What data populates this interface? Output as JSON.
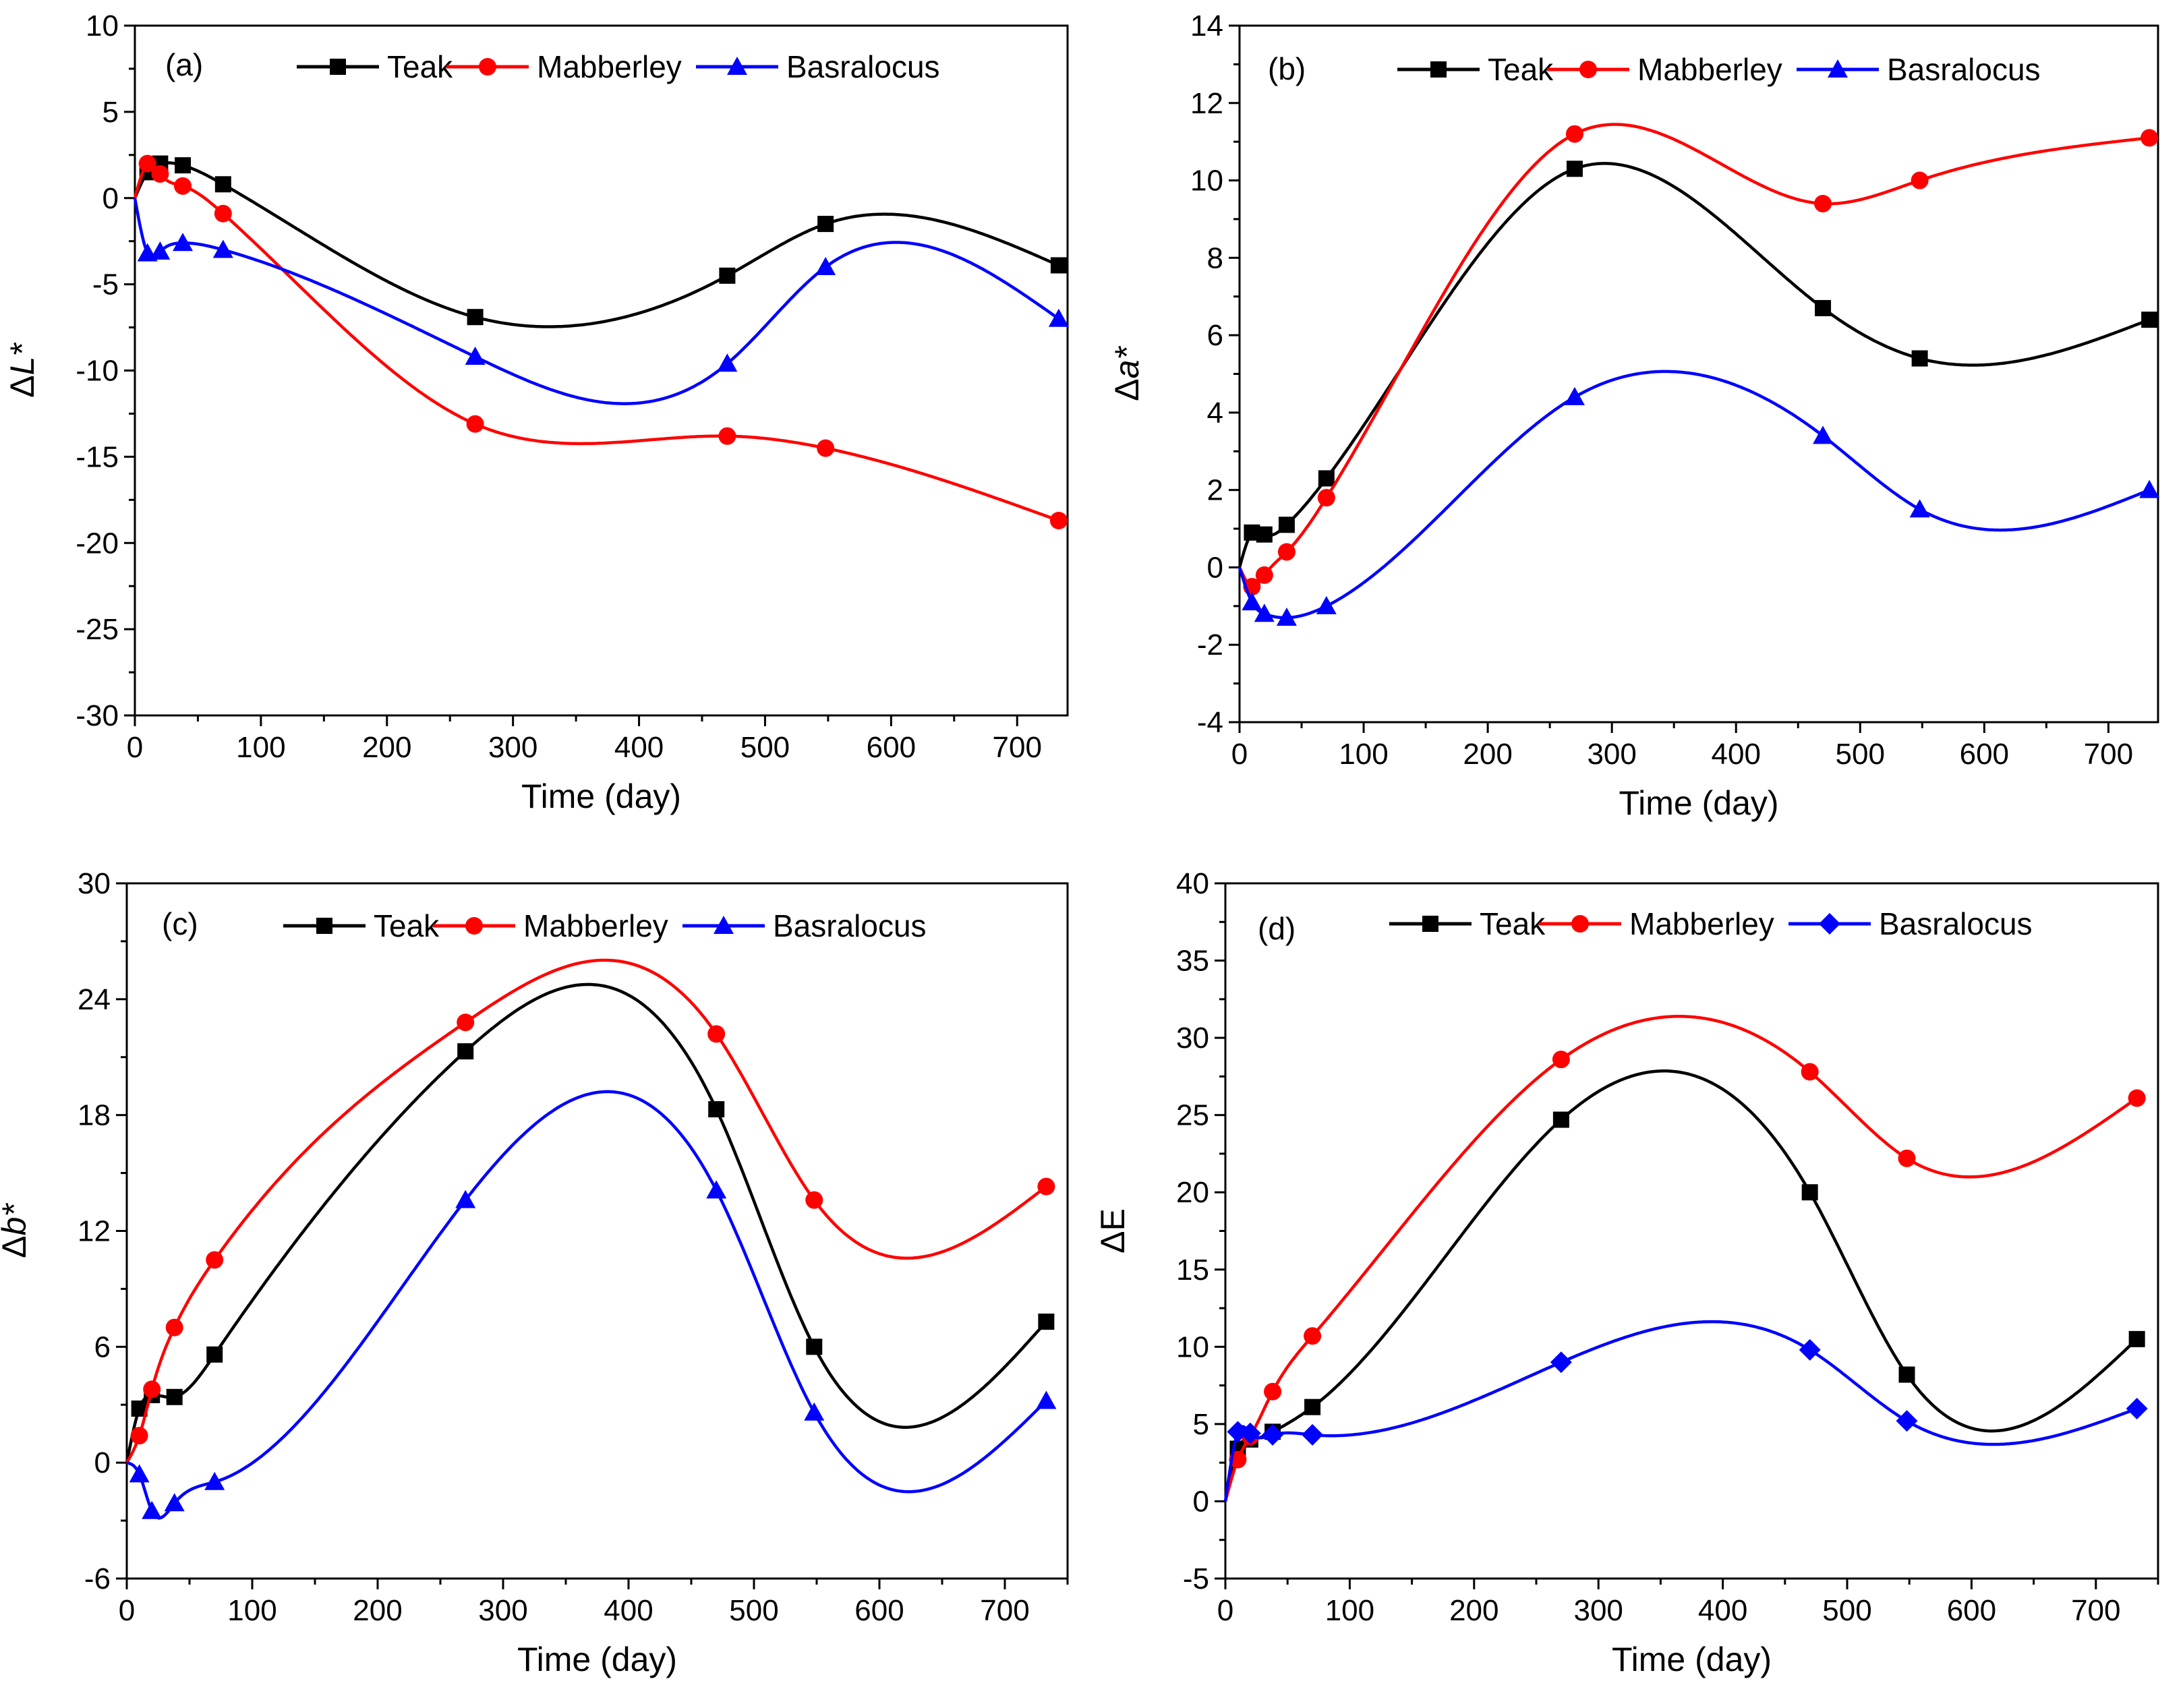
{
  "figure": {
    "background": "#ffffff"
  },
  "series_styles": [
    {
      "name": "Teak",
      "color": "#000000"
    },
    {
      "name": "Mabberley",
      "color": "#ff0000"
    },
    {
      "name": "Basralocus",
      "color": "#0000ff"
    }
  ],
  "chart_data": [
    {
      "type": "line",
      "panel_label": "(a)",
      "xlabel": "Time (day)",
      "ylabel": "ΔL*",
      "ylabel_parts": [
        "Δ",
        "L*"
      ],
      "xlim": [
        0,
        740
      ],
      "ylim": [
        -30,
        10
      ],
      "xticks": [
        0,
        100,
        200,
        300,
        400,
        500,
        600,
        700
      ],
      "yticks": [
        -30,
        -25,
        -20,
        -15,
        -10,
        -5,
        0,
        5,
        10
      ],
      "legend": [
        "Teak",
        "Mabberley",
        "Basralocus"
      ],
      "series": [
        {
          "name": "Teak",
          "marker": "square",
          "x": [
            0,
            10,
            20,
            38,
            70,
            270,
            470,
            548,
            733
          ],
          "y": [
            0,
            1.5,
            2.0,
            1.9,
            0.8,
            -6.9,
            -4.5,
            -1.5,
            -3.9
          ]
        },
        {
          "name": "Mabberley",
          "marker": "circle",
          "x": [
            0,
            10,
            20,
            38,
            70,
            270,
            470,
            548,
            733
          ],
          "y": [
            0,
            2.0,
            1.4,
            0.7,
            -0.9,
            -13.1,
            -13.8,
            -14.5,
            -18.7
          ]
        },
        {
          "name": "Basralocus",
          "marker": "triangle",
          "x": [
            0,
            10,
            20,
            38,
            70,
            270,
            470,
            548,
            733
          ],
          "y": [
            0,
            -3.2,
            -3.1,
            -2.6,
            -3.0,
            -9.2,
            -9.6,
            -4.0,
            -7.0
          ]
        }
      ]
    },
    {
      "type": "line",
      "panel_label": "(b)",
      "xlabel": "Time (day)",
      "ylabel": "Δa*",
      "ylabel_parts": [
        "Δ",
        "a*"
      ],
      "xlim": [
        0,
        740
      ],
      "ylim": [
        -4,
        14
      ],
      "xticks": [
        0,
        100,
        200,
        300,
        400,
        500,
        600,
        700
      ],
      "yticks": [
        -4,
        -2,
        0,
        2,
        4,
        6,
        8,
        10,
        12,
        14
      ],
      "legend": [
        "Teak",
        "Mabberley",
        "Basralocus"
      ],
      "series": [
        {
          "name": "Teak",
          "marker": "square",
          "x": [
            0,
            10,
            20,
            38,
            70,
            270,
            470,
            548,
            733
          ],
          "y": [
            0,
            0.9,
            0.85,
            1.1,
            2.3,
            10.3,
            6.7,
            5.4,
            6.4
          ]
        },
        {
          "name": "Mabberley",
          "marker": "circle",
          "x": [
            0,
            10,
            20,
            38,
            70,
            270,
            470,
            548,
            733
          ],
          "y": [
            0,
            -0.5,
            -0.2,
            0.4,
            1.8,
            11.2,
            9.4,
            10.0,
            11.1
          ]
        },
        {
          "name": "Basralocus",
          "marker": "triangle",
          "x": [
            0,
            10,
            20,
            38,
            70,
            270,
            470,
            548,
            733
          ],
          "y": [
            0,
            -0.9,
            -1.2,
            -1.3,
            -1.0,
            4.4,
            3.4,
            1.5,
            2.0
          ]
        }
      ]
    },
    {
      "type": "line",
      "panel_label": "(c)",
      "xlabel": "Time (day)",
      "ylabel": "Δb*",
      "ylabel_parts": [
        "Δ",
        "b*"
      ],
      "xlim": [
        0,
        750
      ],
      "ylim": [
        -6,
        30
      ],
      "xticks": [
        0,
        100,
        200,
        300,
        400,
        500,
        600,
        700
      ],
      "yticks": [
        -6,
        0,
        6,
        12,
        18,
        24,
        30
      ],
      "legend": [
        "Teak",
        "Mabberley",
        "Basralocus"
      ],
      "series": [
        {
          "name": "Teak",
          "marker": "square",
          "x": [
            0,
            10,
            20,
            38,
            70,
            270,
            470,
            548,
            733
          ],
          "y": [
            0,
            2.8,
            3.5,
            3.4,
            5.6,
            21.3,
            18.3,
            6.0,
            7.3
          ]
        },
        {
          "name": "Mabberley",
          "marker": "circle",
          "x": [
            0,
            10,
            20,
            38,
            70,
            270,
            470,
            548,
            733
          ],
          "y": [
            0,
            1.4,
            3.8,
            7.0,
            10.5,
            22.8,
            22.2,
            13.6,
            14.3
          ]
        },
        {
          "name": "Basralocus",
          "marker": "triangle",
          "x": [
            0,
            10,
            20,
            38,
            70,
            270,
            470,
            548,
            733
          ],
          "y": [
            0,
            -0.6,
            -2.5,
            -2.1,
            -1.0,
            13.6,
            14.1,
            2.6,
            3.2
          ]
        }
      ]
    },
    {
      "type": "line",
      "panel_label": "(d)",
      "xlabel": "Time (day)",
      "ylabel": "ΔE",
      "ylabel_parts": [
        "Δ",
        "E"
      ],
      "xlim": [
        0,
        750
      ],
      "ylim": [
        -5,
        40
      ],
      "xticks": [
        0,
        100,
        200,
        300,
        400,
        500,
        600,
        700
      ],
      "yticks": [
        -5,
        0,
        5,
        10,
        15,
        20,
        25,
        30,
        35,
        40
      ],
      "legend": [
        "Teak",
        "Mabberley",
        "Basralocus"
      ],
      "series": [
        {
          "name": "Teak",
          "marker": "square",
          "x": [
            0,
            10,
            20,
            38,
            70,
            270,
            470,
            548,
            733
          ],
          "y": [
            0,
            3.4,
            4.0,
            4.5,
            6.1,
            24.7,
            20.0,
            8.2,
            10.5
          ]
        },
        {
          "name": "Mabberley",
          "marker": "circle",
          "x": [
            0,
            10,
            20,
            38,
            70,
            270,
            470,
            548,
            733
          ],
          "y": [
            0,
            2.7,
            4.2,
            7.1,
            10.7,
            28.6,
            27.8,
            22.2,
            26.1
          ]
        },
        {
          "name": "Basralocus",
          "marker": "diamond",
          "x": [
            0,
            10,
            20,
            38,
            70,
            270,
            470,
            548,
            733
          ],
          "y": [
            0,
            4.5,
            4.4,
            4.3,
            4.3,
            9.0,
            9.8,
            5.2,
            6.0
          ]
        }
      ]
    }
  ]
}
